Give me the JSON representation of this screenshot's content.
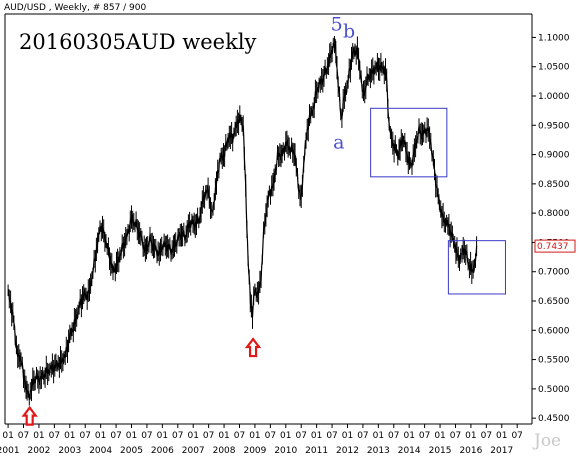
{
  "header": "AUD/USD , Weekly, # 857 / 900",
  "chart_title": "20160305AUD weekly",
  "watermark": "Joe",
  "chart_data": {
    "type": "line",
    "symbol": "AUD/USD",
    "timeframe": "Weekly",
    "xlim": [
      2000.9,
      2017.98
    ],
    "ylim": [
      0.44,
      1.14
    ],
    "y_ticks": [
      "1.1000",
      "1.0500",
      "1.0000",
      "0.9500",
      "0.9000",
      "0.8500",
      "0.8000",
      "0.7500",
      "0.7000",
      "0.6500",
      "0.6000",
      "0.5500",
      "0.5000",
      "0.4500"
    ],
    "y_tick_values": [
      1.1,
      1.05,
      1.0,
      0.95,
      0.9,
      0.85,
      0.8,
      0.75,
      0.7,
      0.65,
      0.6,
      0.55,
      0.5,
      0.45
    ],
    "x_month_ticks": [
      "01",
      "07",
      "01",
      "07",
      "01",
      "07",
      "01",
      "07",
      "01",
      "07",
      "01",
      "07",
      "01",
      "07",
      "01",
      "07",
      "01",
      "07",
      "01",
      "07",
      "01",
      "07",
      "01",
      "07",
      "01",
      "07",
      "01",
      "07",
      "01",
      "07",
      "01",
      "07",
      "01",
      "07"
    ],
    "x_year_labels": [
      "2001",
      "2002",
      "2003",
      "2004",
      "2005",
      "2006",
      "2007",
      "2008",
      "2009",
      "2010",
      "2011",
      "2012",
      "2013",
      "2014",
      "2015",
      "2016",
      "2017"
    ],
    "last_value": "0.7437",
    "series": [
      {
        "x": [
          2001.0,
          2001.08,
          2001.17,
          2001.25,
          2001.33,
          2001.42,
          2001.5,
          2001.58,
          2001.67,
          2001.72,
          2001.8,
          2001.9,
          2002.0,
          2002.2,
          2002.4,
          2002.55,
          2002.7,
          2002.85,
          2003.0,
          2003.15,
          2003.3,
          2003.45,
          2003.6,
          2003.75,
          2003.9,
          2004.0,
          2004.1,
          2004.25,
          2004.4,
          2004.55,
          2004.7,
          2004.85,
          2005.0,
          2005.15,
          2005.3,
          2005.45,
          2005.6,
          2005.75,
          2005.9,
          2006.0,
          2006.15,
          2006.3,
          2006.45,
          2006.6,
          2006.75,
          2006.9,
          2007.05,
          2007.2,
          2007.35,
          2007.5,
          2007.6,
          2007.7,
          2007.85,
          2008.0,
          2008.15,
          2008.3,
          2008.45,
          2008.55,
          2008.62,
          2008.7,
          2008.78,
          2008.85,
          2008.92,
          2009.0,
          2009.1,
          2009.2,
          2009.3,
          2009.45,
          2009.6,
          2009.75,
          2009.9,
          2010.0,
          2010.15,
          2010.3,
          2010.4,
          2010.5,
          2010.6,
          2010.75,
          2010.9,
          2011.0,
          2011.1,
          2011.2,
          2011.35,
          2011.5,
          2011.6,
          2011.7,
          2011.8,
          2011.9,
          2012.0,
          2012.15,
          2012.3,
          2012.4,
          2012.5,
          2012.65,
          2012.8,
          2012.95,
          2013.1,
          2013.25,
          2013.35,
          2013.45,
          2013.55,
          2013.65,
          2013.8,
          2013.95,
          2014.05,
          2014.15,
          2014.3,
          2014.45,
          2014.6,
          2014.7,
          2014.8,
          2014.9,
          2015.0,
          2015.1,
          2015.25,
          2015.4,
          2015.55,
          2015.65,
          2015.75,
          2015.85,
          2015.95,
          2016.05,
          2016.15,
          2016.2
        ],
        "y": [
          0.665,
          0.645,
          0.62,
          0.58,
          0.55,
          0.555,
          0.52,
          0.505,
          0.485,
          0.495,
          0.51,
          0.52,
          0.515,
          0.525,
          0.535,
          0.54,
          0.545,
          0.555,
          0.59,
          0.61,
          0.64,
          0.66,
          0.66,
          0.7,
          0.75,
          0.78,
          0.765,
          0.735,
          0.7,
          0.715,
          0.74,
          0.76,
          0.79,
          0.78,
          0.76,
          0.735,
          0.755,
          0.74,
          0.73,
          0.745,
          0.745,
          0.735,
          0.75,
          0.765,
          0.76,
          0.785,
          0.78,
          0.79,
          0.83,
          0.84,
          0.795,
          0.83,
          0.89,
          0.9,
          0.93,
          0.93,
          0.96,
          0.96,
          0.95,
          0.84,
          0.72,
          0.65,
          0.63,
          0.67,
          0.66,
          0.69,
          0.78,
          0.83,
          0.85,
          0.9,
          0.9,
          0.92,
          0.91,
          0.9,
          0.85,
          0.82,
          0.9,
          0.96,
          0.98,
          1.01,
          1.02,
          1.03,
          1.05,
          1.08,
          1.09,
          1.02,
          0.96,
          1.0,
          1.02,
          1.07,
          1.08,
          1.05,
          1.0,
          1.03,
          1.04,
          1.05,
          1.05,
          1.04,
          0.95,
          0.92,
          0.91,
          0.9,
          0.93,
          0.895,
          0.88,
          0.9,
          0.94,
          0.935,
          0.945,
          0.92,
          0.88,
          0.84,
          0.81,
          0.79,
          0.78,
          0.76,
          0.73,
          0.72,
          0.74,
          0.73,
          0.71,
          0.7,
          0.72,
          0.744
        ]
      }
    ],
    "annotations": [
      {
        "text": "5",
        "x": 2011.65,
        "y": 1.112
      },
      {
        "text": "b",
        "x": 2012.05,
        "y": 1.1
      },
      {
        "text": "a",
        "x": 2011.72,
        "y": 0.91
      }
    ],
    "markers": [
      {
        "type": "up-arrow",
        "x": 2001.7,
        "y": 0.468
      },
      {
        "type": "up-arrow",
        "x": 2008.94,
        "y": 0.585
      }
    ],
    "boxes": [
      {
        "x0": 2012.75,
        "x1": 2015.22,
        "y0": 0.862,
        "y1": 0.979
      },
      {
        "x0": 2015.27,
        "x1": 2017.12,
        "y0": 0.662,
        "y1": 0.753
      }
    ],
    "grid": false
  }
}
